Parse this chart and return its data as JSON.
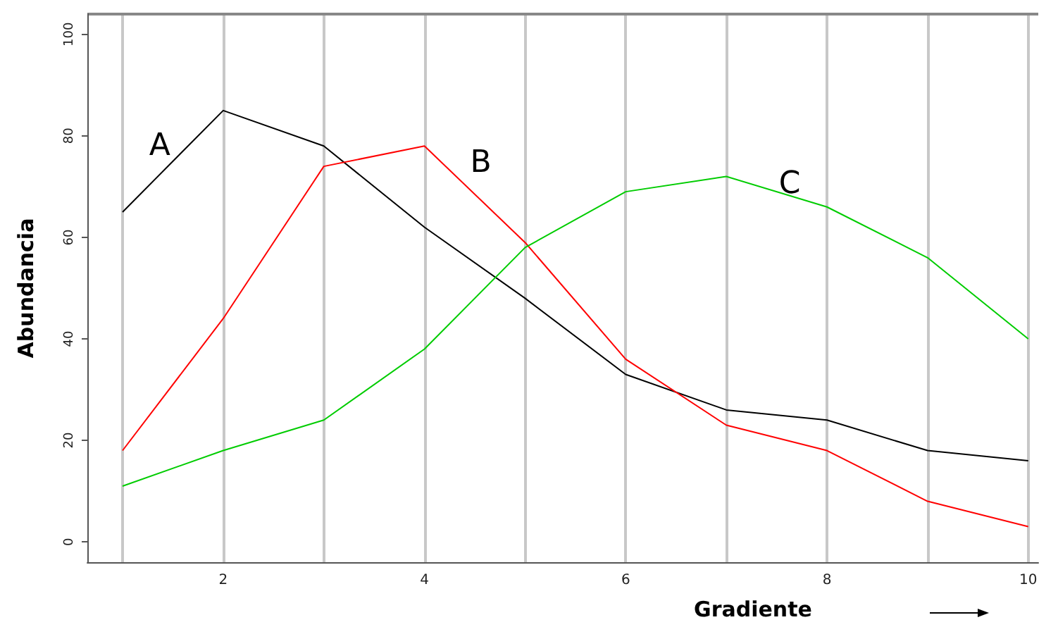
{
  "chart_data": {
    "type": "line",
    "xlabel": "Gradiente",
    "ylabel": "Abundancia",
    "x": [
      1,
      2,
      3,
      4,
      5,
      6,
      7,
      8,
      9,
      10
    ],
    "series": [
      {
        "name": "A",
        "color": "#000000",
        "values": [
          65,
          85,
          78,
          62,
          48,
          33,
          26,
          24,
          18,
          16
        ]
      },
      {
        "name": "B",
        "color": "#ff0000",
        "values": [
          18,
          44,
          74,
          78,
          59,
          36,
          23,
          18,
          8,
          3
        ]
      },
      {
        "name": "C",
        "color": "#00cc00",
        "values": [
          11,
          18,
          24,
          38,
          58,
          69,
          72,
          66,
          56,
          40
        ]
      }
    ],
    "xlim": [
      0.65,
      10.1
    ],
    "ylim": [
      -4,
      104
    ],
    "xticks": [
      {
        "value": 1,
        "label": null
      },
      2,
      {
        "value": 3,
        "label": null
      },
      4,
      {
        "value": 5,
        "label": null
      },
      6,
      {
        "value": 7,
        "label": null
      },
      8,
      {
        "value": 9,
        "label": null
      },
      10
    ],
    "yticks": [
      0,
      20,
      40,
      60,
      80,
      100
    ],
    "grid": "x",
    "marker": "none",
    "line_style": "solid",
    "legend": false
  }
}
